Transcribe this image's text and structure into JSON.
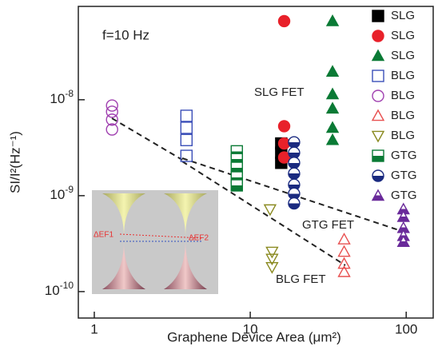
{
  "chart_data": {
    "type": "scatter",
    "x_label": "Graphene Device Area (μm²)",
    "y_label": "SI/I²(Hz⁻¹)",
    "annotations": [
      "f=10 Hz",
      "SLG FET",
      "GTG FET",
      "BLG FET"
    ],
    "inset_labels": [
      "ΔEF1",
      "ΔEF2"
    ],
    "log_x": true,
    "log_y": true,
    "xlim": [
      0.79,
      149
    ],
    "ylim": [
      5.3e-11,
      9.4e-08
    ],
    "xticks": [
      1,
      10,
      100
    ],
    "yticks": [
      {
        "value": 1e-08,
        "label": "10-8"
      },
      {
        "value": 1e-09,
        "label": "10-9"
      },
      {
        "value": 1e-10,
        "label": "10-10"
      }
    ],
    "series": [
      {
        "name": "SLG",
        "color": "#000000",
        "marker": "square",
        "fill": "full",
        "x": [
          15.8,
          15.8,
          15.8
        ],
        "values": [
          3.5e-09,
          2.8e-09,
          2.2e-09
        ]
      },
      {
        "name": "SLG",
        "color": "#e8212a",
        "marker": "circle",
        "fill": "full",
        "x": [
          16.5,
          16.5,
          16.5,
          16.5
        ],
        "values": [
          6.6e-08,
          5.3e-09,
          3.5e-09,
          2.5e-09
        ]
      },
      {
        "name": "SLG",
        "color": "#0a7a35",
        "marker": "triangle",
        "fill": "full",
        "x": [
          33.7,
          33.7,
          33.7,
          33.7,
          33.7,
          33.7
        ],
        "values": [
          6.6e-08,
          1.96e-08,
          1.14e-08,
          8.1e-09,
          5.1e-09,
          3.8e-09
        ]
      },
      {
        "name": "BLG",
        "color": "#3b4fb8",
        "marker": "square",
        "fill": "open",
        "x": [
          3.9,
          3.9,
          3.9,
          3.9
        ],
        "values": [
          6.8e-09,
          5.1e-09,
          3.8e-09,
          2.6e-09
        ]
      },
      {
        "name": "BLG",
        "color": "#a040b0",
        "marker": "circle",
        "fill": "open",
        "x": [
          1.3,
          1.3,
          1.3,
          1.3
        ],
        "values": [
          8.7e-09,
          7.5e-09,
          6.2e-09,
          4.9e-09
        ]
      },
      {
        "name": "BLG",
        "color": "#e85050",
        "marker": "triangle",
        "fill": "open",
        "x": [
          40,
          40,
          40,
          40
        ],
        "values": [
          3.5e-10,
          2.6e-10,
          1.95e-10,
          1.6e-10
        ]
      },
      {
        "name": "BLG",
        "color": "#8a8a20",
        "marker": "triangle-down",
        "fill": "open",
        "x": [
          13.4,
          13.8,
          13.8,
          13.8
        ],
        "values": [
          7.2e-10,
          2.6e-10,
          2.2e-10,
          1.8e-10
        ]
      },
      {
        "name": "GTG",
        "color": "#0a7a35",
        "marker": "square",
        "fill": "half",
        "x": [
          8.2,
          8.2,
          8.2,
          8.2,
          8.2
        ],
        "values": [
          2.9e-09,
          2.4e-09,
          1.95e-09,
          1.55e-09,
          1.28e-09
        ]
      },
      {
        "name": "GTG",
        "color": "#1a2a80",
        "marker": "circle",
        "fill": "half",
        "x": [
          19.1,
          19.1,
          19.1,
          19.1,
          19.1,
          19.1,
          19.1
        ],
        "values": [
          3.6e-09,
          2.8e-09,
          2.2e-09,
          1.7e-09,
          1.3e-09,
          1.05e-09,
          8.3e-10
        ]
      },
      {
        "name": "GTG",
        "color": "#6a2a9a",
        "marker": "triangle",
        "fill": "half",
        "x": [
          96,
          96,
          96,
          96,
          96
        ],
        "values": [
          7.2e-10,
          6e-10,
          4.6e-10,
          3.8e-10,
          3.3e-10
        ]
      }
    ]
  }
}
